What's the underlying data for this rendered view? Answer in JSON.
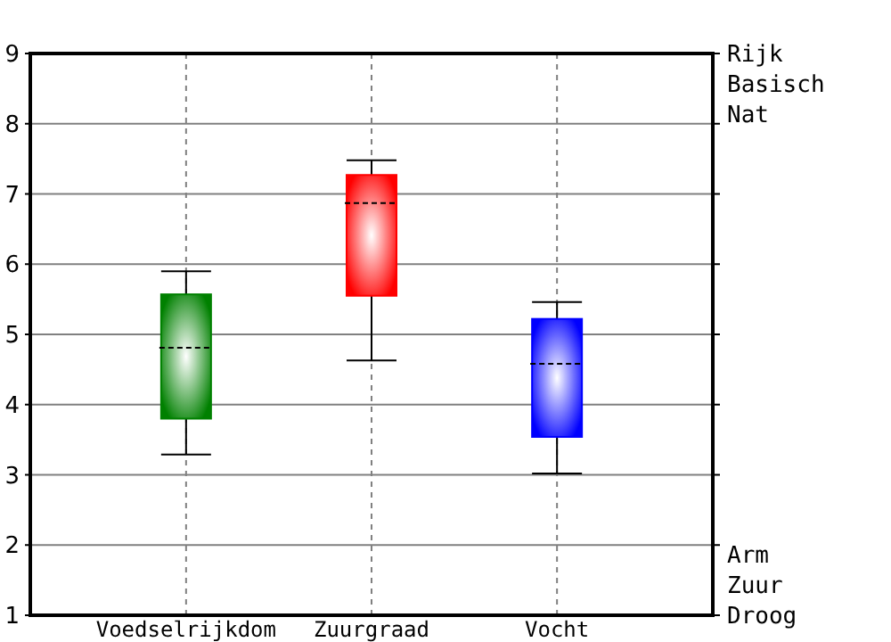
{
  "chart_data": {
    "type": "box",
    "categories": [
      "Voedselrijkdom",
      "Zuurgraad",
      "Vocht"
    ],
    "boxes": [
      {
        "low": 3.29,
        "q1": 3.8,
        "median": 4.81,
        "q3": 5.57,
        "high": 5.9
      },
      {
        "low": 4.63,
        "q1": 5.55,
        "median": 6.87,
        "q3": 7.27,
        "high": 7.48
      },
      {
        "low": 3.02,
        "q1": 3.54,
        "median": 4.58,
        "q3": 5.22,
        "high": 5.46
      }
    ],
    "colors": [
      "#008000",
      "#ff0000",
      "#0000ff"
    ],
    "ylim": [
      1,
      9
    ],
    "yticks": [
      1,
      2,
      3,
      4,
      5,
      6,
      7,
      8,
      9
    ],
    "grid": true,
    "annotations": [
      "Rijk",
      "Basisch",
      "Nat",
      "Arm",
      "Zuur",
      "Droog"
    ]
  }
}
